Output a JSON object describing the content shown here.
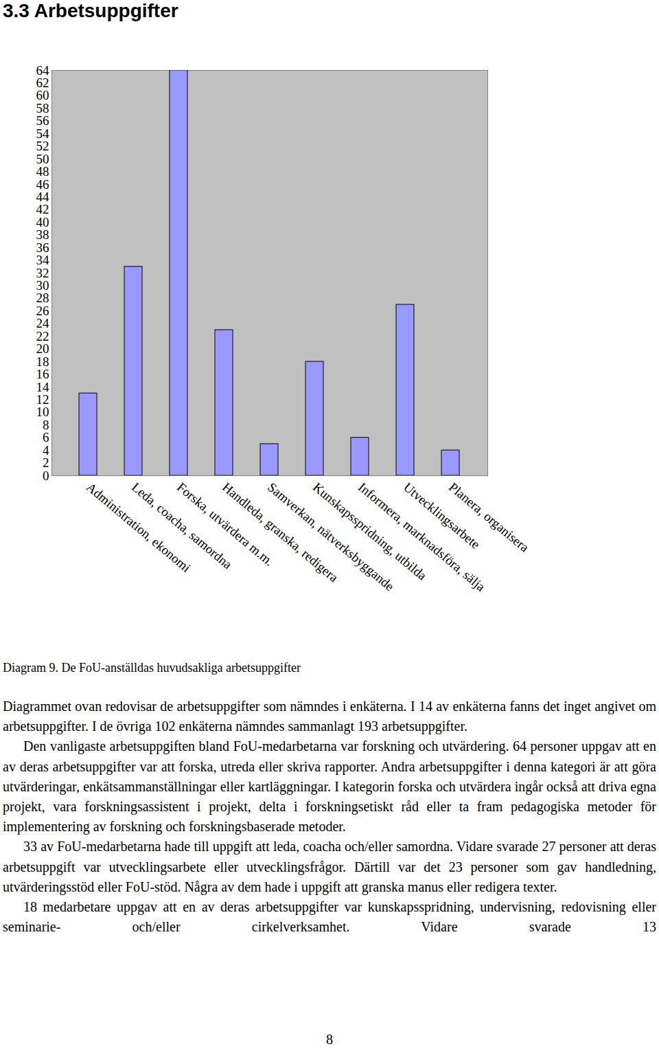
{
  "heading": "3.3 Arbetsuppgifter",
  "chart_data": {
    "type": "bar",
    "categories": [
      "Administration, ekonomi",
      "Leda, coacha, samordna",
      "Forska, utvärdera m.m.",
      "Handleda, granska, redigera",
      "Samverkan, nätverksbyggande",
      "Kunskapsspridning, utbilda",
      "Informera, marknadsföra, sälja",
      "Utvecklingsarbete",
      "Planera, organisera"
    ],
    "values": [
      13,
      33,
      64,
      23,
      5,
      18,
      6,
      27,
      4
    ],
    "color": "#9999ff",
    "ylim": [
      0,
      64
    ],
    "yticks": [
      0,
      2,
      4,
      6,
      8,
      10,
      12,
      14,
      16,
      18,
      20,
      22,
      24,
      26,
      28,
      30,
      32,
      34,
      36,
      38,
      40,
      42,
      44,
      46,
      48,
      50,
      52,
      54,
      56,
      58,
      60,
      62,
      64
    ],
    "grid": false
  },
  "caption": "Diagram 9. De FoU-anställdas huvudsakliga arbetsuppgifter",
  "paragraphs": [
    {
      "indent": false,
      "text": "Diagrammet ovan redovisar de arbetsuppgifter som nämndes i enkäterna. I 14 av enkäterna fanns det inget angivet om arbetsuppgifter. I de övriga 102 enkäterna nämndes sammanlagt 193 arbetsuppgifter."
    },
    {
      "indent": true,
      "text": "Den vanligaste arbetsuppgiften bland FoU-medarbetarna var forskning och utvärdering. 64 personer uppgav att en av deras arbetsuppgifter var att forska, utreda eller skriva rapporter. Andra arbetsuppgifter i denna kategori är att göra utvärderingar, enkätsammanställningar eller kartläggningar. I kategorin forska och utvärdera ingår också att driva egna projekt, vara forskningsassistent i projekt, delta i forskningsetiskt råd eller ta fram pedagogiska metoder för implementering av forskning och forskningsbaserade metoder."
    },
    {
      "indent": true,
      "text": "33 av FoU-medarbetarna hade till uppgift att leda, coacha och/eller samordna. Vidare svarade 27 personer att deras arbetsuppgift var utvecklingsarbete eller utvecklingsfrågor. Därtill var det 23 personer som gav handledning, utvärderingsstöd eller FoU-stöd. Några av dem hade i uppgift att granska manus eller redigera texter."
    },
    {
      "indent": true,
      "text": "18 medarbetare uppgav att en av deras arbetsuppgifter var kunskapsspridning, undervisning, redovisning eller seminarie- och/eller cirkelverksamhet. Vidare svarade 13"
    }
  ],
  "page_number": "8"
}
